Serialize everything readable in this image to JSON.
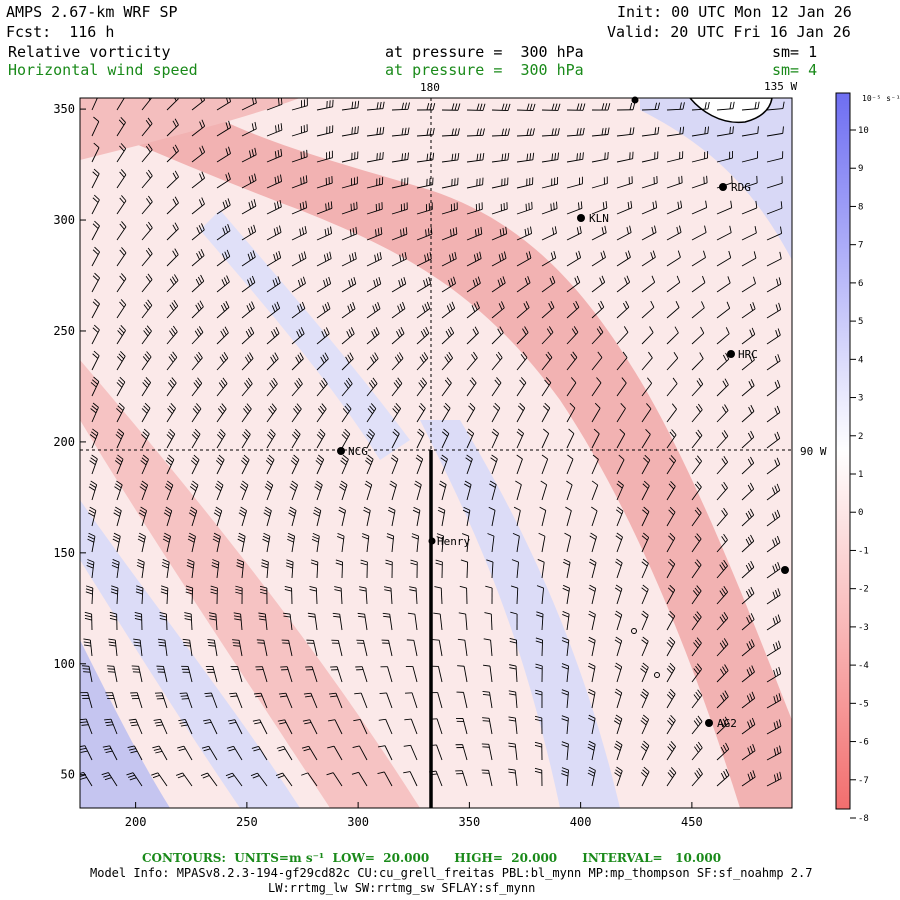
{
  "header": {
    "model": "AMPS 2.67-km WRF SP",
    "init": "Init: 00 UTC Mon 12 Jan 26",
    "fcst": "Fcst:  116 h",
    "valid": "Valid: 20 UTC Fri 16 Jan 26",
    "field1": {
      "name": "Relative vorticity",
      "level": "at pressure =  300 hPa",
      "sm": "sm= 1"
    },
    "field2": {
      "name": "Horizontal wind speed",
      "level": "at pressure =  300 hPa",
      "sm": "sm= 4"
    }
  },
  "map_labels": {
    "meridian_180": "180",
    "meridian_135w": "135 W",
    "parallel_90w": "90 W",
    "stations": [
      {
        "name": "RDG"
      },
      {
        "name": "KLN"
      },
      {
        "name": "HRC"
      },
      {
        "name": "NCG"
      },
      {
        "name": "Henry"
      },
      {
        "name": "AG2"
      }
    ]
  },
  "axes": {
    "x_ticks": [
      "200",
      "250",
      "300",
      "350",
      "400",
      "450"
    ],
    "y_ticks": [
      "350",
      "300",
      "250",
      "200",
      "150",
      "100",
      "50"
    ],
    "xlim": [
      175,
      495
    ],
    "ylim": [
      35,
      355
    ]
  },
  "colorbar": {
    "unit_label": "10⁻⁵ s⁻¹",
    "ticks": [
      "10",
      "9",
      "8",
      "7",
      "6",
      "5",
      "4",
      "3",
      "2",
      "1",
      "0",
      "-1",
      "-2",
      "-3",
      "-4",
      "-5",
      "-6",
      "-7",
      "-8"
    ],
    "colors": {
      "positive_max": "#6e6ef2",
      "neutral": "#ffffff",
      "negative_max": "#f26e6e"
    }
  },
  "footer": {
    "contours": "CONTOURS:  UNITS=m s⁻¹  LOW=  20.000      HIGH=  20.000      INTERVAL=   10.000",
    "model_info": "Model Info: MPASv8.2.3-194-gf29cd82c CU:cu_grell_freitas PBL:bl_mynn MP:mp_thompson SF:sf_noahmp 2.7",
    "model_info2": "LW:rrtmg_lw SW:rrtmg_sw SFLAY:sf_mynn"
  }
}
